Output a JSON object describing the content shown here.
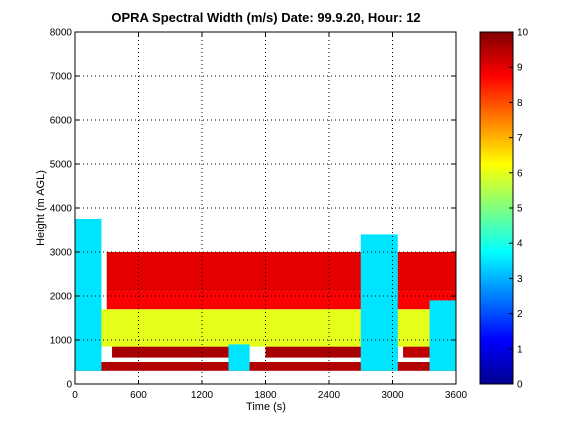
{
  "chart_data": {
    "type": "heatmap",
    "title": "OPRA Spectral Width (m/s)  Date: 99.9.20, Hour: 12",
    "xlabel": "Time (s)",
    "ylabel": "Height (m AGL)",
    "xlim": [
      0,
      3600
    ],
    "ylim": [
      0,
      8000
    ],
    "xticks": [
      "0",
      "600",
      "1200",
      "1800",
      "2400",
      "3000",
      "3600"
    ],
    "yticks": [
      "0",
      "1000",
      "2000",
      "3000",
      "4000",
      "5000",
      "6000",
      "7000",
      "8000"
    ],
    "grid": "dotted",
    "colorbar": {
      "range": [
        0,
        10
      ],
      "ticks": [
        "0",
        "1",
        "2",
        "3",
        "4",
        "5",
        "6",
        "7",
        "8",
        "9",
        "10"
      ],
      "colormap": "jet"
    },
    "regions": [
      {
        "t_start": 0,
        "t_end": 3600,
        "z_bottom": 300,
        "z_top": 500,
        "value": 9.5
      },
      {
        "t_start": 350,
        "t_end": 1550,
        "z_bottom": 600,
        "z_top": 850,
        "value": 9.6
      },
      {
        "t_start": 1800,
        "t_end": 3050,
        "z_bottom": 600,
        "z_top": 850,
        "value": 9.6
      },
      {
        "t_start": 3100,
        "t_end": 3550,
        "z_bottom": 600,
        "z_top": 850,
        "value": 9.4
      },
      {
        "t_start": 0,
        "t_end": 3600,
        "z_bottom": 850,
        "z_top": 1700,
        "value": 6.0
      },
      {
        "t_start": 300,
        "t_end": 3600,
        "z_bottom": 1700,
        "z_top": 2100,
        "value": 8.8
      },
      {
        "t_start": 300,
        "t_end": 3600,
        "z_bottom": 2100,
        "z_top": 3000,
        "value": 9.0
      },
      {
        "t_start": 0,
        "t_end": 250,
        "z_bottom": 300,
        "z_top": 3750,
        "value": 3.5
      },
      {
        "t_start": 1450,
        "t_end": 1650,
        "z_bottom": 300,
        "z_top": 900,
        "value": 3.5
      },
      {
        "t_start": 2700,
        "t_end": 3050,
        "z_bottom": 300,
        "z_top": 3400,
        "value": 3.5
      },
      {
        "t_start": 3350,
        "t_end": 3600,
        "z_bottom": 300,
        "z_top": 1900,
        "value": 3.5
      }
    ]
  }
}
